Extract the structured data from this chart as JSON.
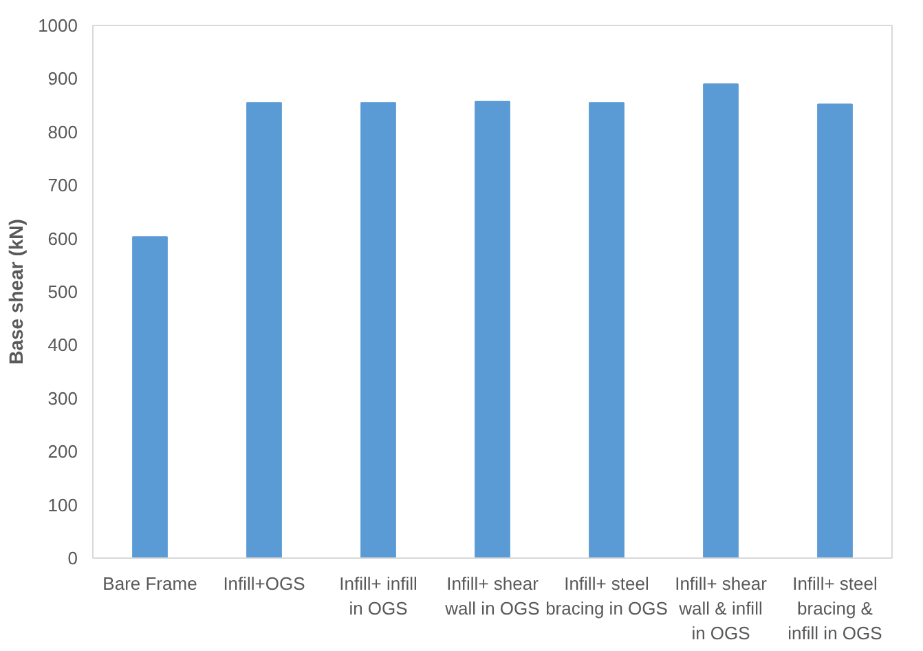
{
  "chart_data": {
    "type": "bar",
    "ylabel": "Base shear (kN)",
    "categories": [
      "Bare Frame",
      "Infill+OGS",
      "Infill+ infill in OGS",
      "Infill+ shear wall in OGS",
      "Infill+ steel bracing in OGS",
      "Infill+ shear wall & infill in OGS",
      "Infill+ steel bracing & infill in OGS"
    ],
    "values": [
      603,
      855,
      855,
      857,
      855,
      890,
      852
    ],
    "color": "#5b9bd5",
    "ylim": [
      0,
      1000
    ],
    "yticks": [
      0,
      100,
      200,
      300,
      400,
      500,
      600,
      700,
      800,
      900,
      1000
    ],
    "grid": false
  }
}
